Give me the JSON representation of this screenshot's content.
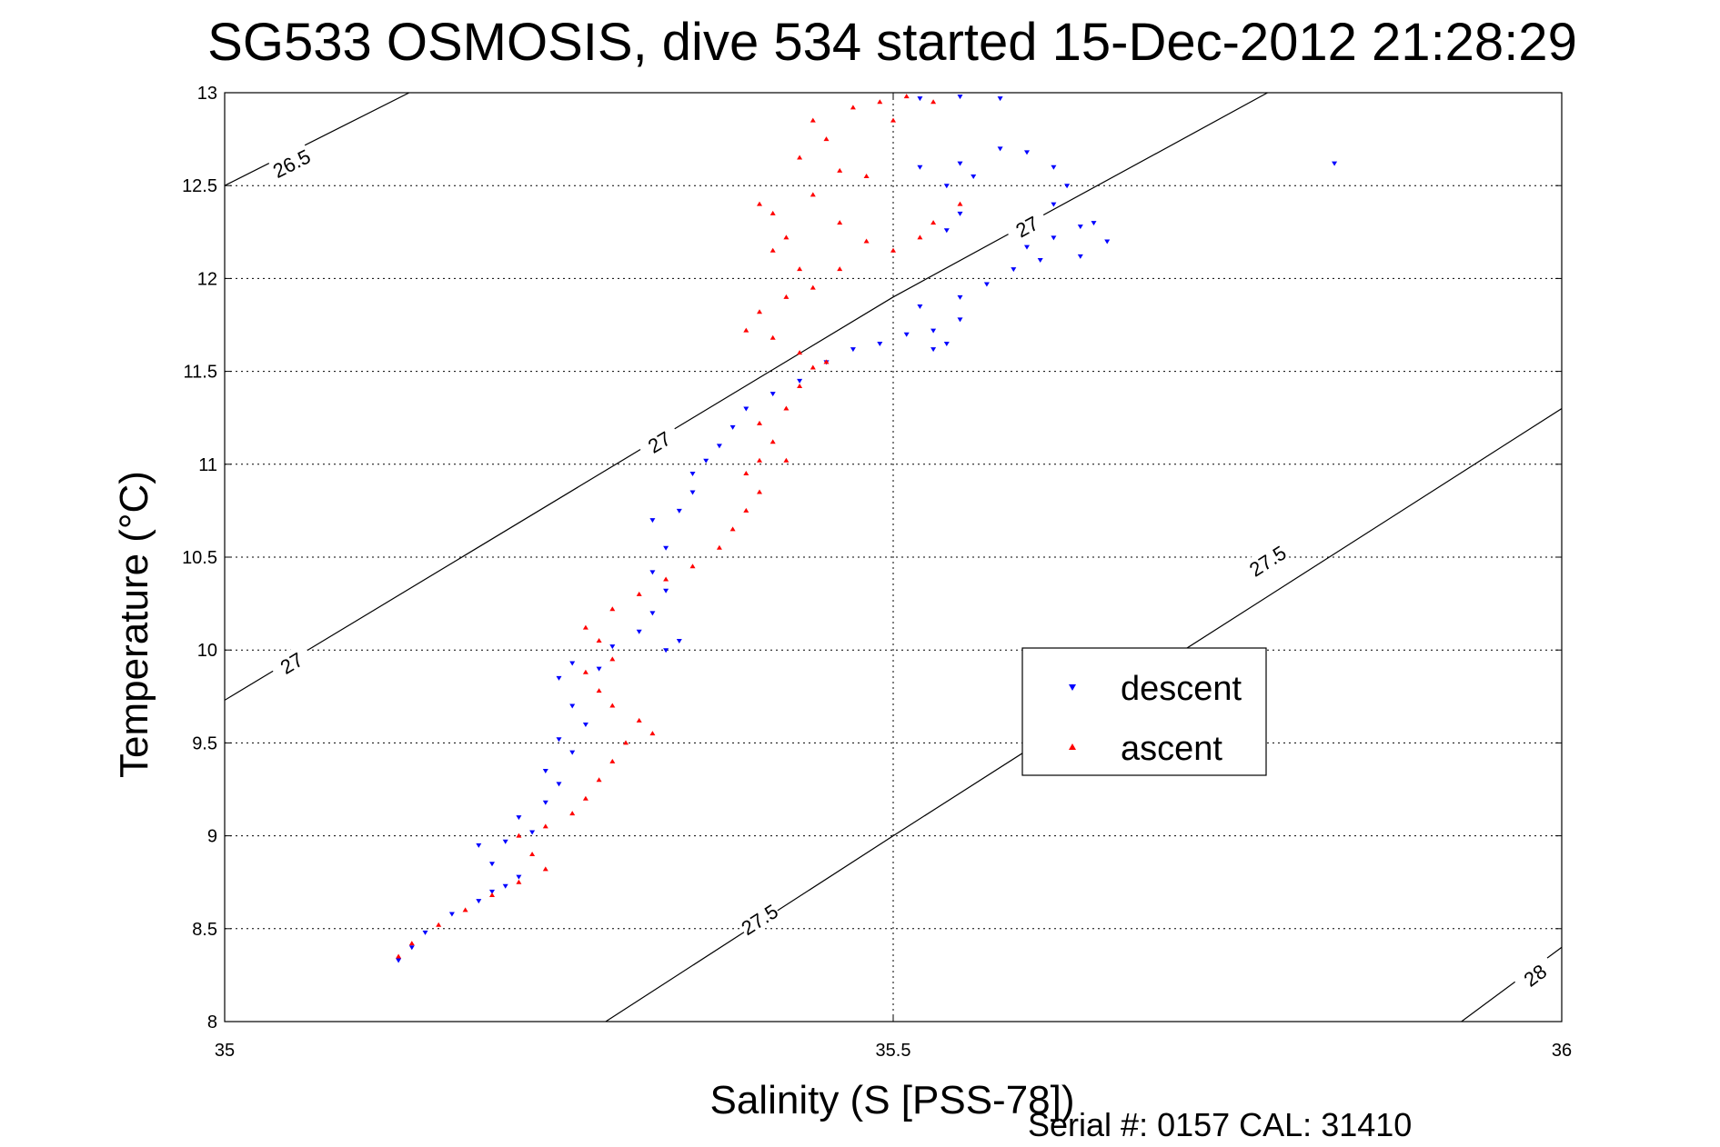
{
  "chart_data": {
    "type": "scatter",
    "title": "SG533 OSMOSIS, dive 534 started 15-Dec-2012 21:28:29",
    "xlabel": "Salinity (S [PSS-78])",
    "ylabel": "Temperature (°C)",
    "xlim": [
      35,
      36
    ],
    "ylim": [
      8,
      13
    ],
    "xticks": [
      35,
      35.5,
      36
    ],
    "xtick_labels": [
      "35",
      "35.5",
      "36"
    ],
    "yticks": [
      8,
      8.5,
      9,
      9.5,
      10,
      10.5,
      11,
      11.5,
      12,
      12.5,
      13
    ],
    "ytick_labels": [
      "8",
      "8.5",
      "9",
      "9.5",
      "10",
      "10.5",
      "11",
      "11.5",
      "12",
      "12.5",
      "13"
    ],
    "grid": true,
    "legend_position": "center-right",
    "footer": "Serial #: 0157  CAL: 31410",
    "colors": {
      "descent": "#0000ff",
      "ascent": "#ff0000"
    },
    "contours": [
      {
        "label": "26.5",
        "points": [
          [
            35.0,
            12.5
          ],
          [
            35.138,
            13.0
          ]
        ],
        "labels_at": [
          [
            35.05,
            12.62
          ]
        ]
      },
      {
        "label": "27",
        "points": [
          [
            35.0,
            9.73
          ],
          [
            35.5,
            11.9
          ],
          [
            35.78,
            13.0
          ]
        ],
        "labels_at": [
          [
            35.05,
            9.93
          ],
          [
            35.325,
            11.12
          ],
          [
            35.6,
            12.28
          ]
        ]
      },
      {
        "label": "27.5",
        "points": [
          [
            35.285,
            8.0
          ],
          [
            35.5,
            9.0
          ],
          [
            36.0,
            11.3
          ]
        ],
        "labels_at": [
          [
            35.4,
            8.55
          ],
          [
            35.78,
            10.48
          ]
        ]
      },
      {
        "label": "28",
        "points": [
          [
            35.925,
            8.0
          ],
          [
            36.0,
            8.4
          ]
        ],
        "labels_at": [
          [
            35.98,
            8.25
          ]
        ]
      }
    ],
    "series": [
      {
        "name": "descent",
        "marker": "triangle-down",
        "points": [
          [
            35.13,
            8.33
          ],
          [
            35.14,
            8.4
          ],
          [
            35.15,
            8.48
          ],
          [
            35.17,
            8.58
          ],
          [
            35.19,
            8.65
          ],
          [
            35.2,
            8.7
          ],
          [
            35.21,
            8.73
          ],
          [
            35.22,
            8.78
          ],
          [
            35.2,
            8.85
          ],
          [
            35.19,
            8.95
          ],
          [
            35.21,
            8.97
          ],
          [
            35.23,
            9.02
          ],
          [
            35.22,
            9.1
          ],
          [
            35.24,
            9.18
          ],
          [
            35.25,
            9.28
          ],
          [
            35.24,
            9.35
          ],
          [
            35.26,
            9.45
          ],
          [
            35.25,
            9.52
          ],
          [
            35.27,
            9.6
          ],
          [
            35.26,
            9.7
          ],
          [
            35.25,
            9.85
          ],
          [
            35.26,
            9.93
          ],
          [
            35.28,
            9.9
          ],
          [
            35.29,
            10.02
          ],
          [
            35.31,
            10.1
          ],
          [
            35.33,
            10.0
          ],
          [
            35.34,
            10.05
          ],
          [
            35.32,
            10.2
          ],
          [
            35.33,
            10.32
          ],
          [
            35.32,
            10.42
          ],
          [
            35.33,
            10.55
          ],
          [
            35.32,
            10.7
          ],
          [
            35.34,
            10.75
          ],
          [
            35.35,
            10.85
          ],
          [
            35.35,
            10.95
          ],
          [
            35.36,
            11.02
          ],
          [
            35.37,
            11.1
          ],
          [
            35.38,
            11.2
          ],
          [
            35.39,
            11.3
          ],
          [
            35.41,
            11.38
          ],
          [
            35.43,
            11.45
          ],
          [
            35.45,
            11.55
          ],
          [
            35.47,
            11.62
          ],
          [
            35.49,
            11.65
          ],
          [
            35.51,
            11.7
          ],
          [
            35.53,
            11.72
          ],
          [
            35.55,
            11.78
          ],
          [
            35.54,
            11.65
          ],
          [
            35.53,
            11.62
          ],
          [
            35.52,
            11.85
          ],
          [
            35.55,
            11.9
          ],
          [
            35.57,
            11.97
          ],
          [
            35.59,
            12.05
          ],
          [
            35.61,
            12.1
          ],
          [
            35.6,
            12.17
          ],
          [
            35.62,
            12.22
          ],
          [
            35.64,
            12.28
          ],
          [
            35.65,
            12.3
          ],
          [
            35.66,
            12.2
          ],
          [
            35.64,
            12.12
          ],
          [
            35.62,
            12.4
          ],
          [
            35.63,
            12.5
          ],
          [
            35.62,
            12.6
          ],
          [
            35.6,
            12.68
          ],
          [
            35.58,
            12.7
          ],
          [
            35.55,
            12.62
          ],
          [
            35.52,
            12.6
          ],
          [
            35.54,
            12.5
          ],
          [
            35.56,
            12.55
          ],
          [
            35.55,
            12.35
          ],
          [
            35.54,
            12.26
          ],
          [
            35.55,
            12.98
          ],
          [
            35.52,
            12.97
          ],
          [
            35.58,
            12.97
          ],
          [
            35.83,
            12.62
          ]
        ]
      },
      {
        "name": "ascent",
        "marker": "triangle-up",
        "points": [
          [
            35.13,
            8.35
          ],
          [
            35.14,
            8.42
          ],
          [
            35.16,
            8.52
          ],
          [
            35.18,
            8.6
          ],
          [
            35.2,
            8.68
          ],
          [
            35.22,
            8.75
          ],
          [
            35.24,
            8.82
          ],
          [
            35.23,
            8.9
          ],
          [
            35.22,
            9.0
          ],
          [
            35.24,
            9.05
          ],
          [
            35.26,
            9.12
          ],
          [
            35.27,
            9.2
          ],
          [
            35.28,
            9.3
          ],
          [
            35.29,
            9.4
          ],
          [
            35.3,
            9.5
          ],
          [
            35.32,
            9.55
          ],
          [
            35.31,
            9.62
          ],
          [
            35.29,
            9.7
          ],
          [
            35.28,
            9.78
          ],
          [
            35.27,
            9.88
          ],
          [
            35.29,
            9.95
          ],
          [
            35.28,
            10.05
          ],
          [
            35.27,
            10.12
          ],
          [
            35.29,
            10.22
          ],
          [
            35.31,
            10.3
          ],
          [
            35.33,
            10.38
          ],
          [
            35.35,
            10.45
          ],
          [
            35.37,
            10.55
          ],
          [
            35.38,
            10.65
          ],
          [
            35.39,
            10.75
          ],
          [
            35.4,
            10.85
          ],
          [
            35.39,
            10.95
          ],
          [
            35.4,
            11.02
          ],
          [
            35.42,
            11.02
          ],
          [
            35.41,
            11.12
          ],
          [
            35.4,
            11.22
          ],
          [
            35.42,
            11.3
          ],
          [
            35.43,
            11.42
          ],
          [
            35.44,
            11.52
          ],
          [
            35.45,
            11.55
          ],
          [
            35.43,
            11.6
          ],
          [
            35.41,
            11.68
          ],
          [
            35.39,
            11.72
          ],
          [
            35.4,
            11.82
          ],
          [
            35.42,
            11.9
          ],
          [
            35.44,
            11.95
          ],
          [
            35.46,
            12.05
          ],
          [
            35.43,
            12.05
          ],
          [
            35.41,
            12.15
          ],
          [
            35.42,
            12.22
          ],
          [
            35.46,
            12.3
          ],
          [
            35.48,
            12.2
          ],
          [
            35.5,
            12.15
          ],
          [
            35.52,
            12.22
          ],
          [
            35.53,
            12.3
          ],
          [
            35.55,
            12.4
          ],
          [
            35.48,
            12.55
          ],
          [
            35.46,
            12.58
          ],
          [
            35.44,
            12.45
          ],
          [
            35.41,
            12.35
          ],
          [
            35.4,
            12.4
          ],
          [
            35.43,
            12.65
          ],
          [
            35.45,
            12.75
          ],
          [
            35.44,
            12.85
          ],
          [
            35.47,
            12.92
          ],
          [
            35.49,
            12.95
          ],
          [
            35.51,
            12.98
          ],
          [
            35.53,
            12.95
          ],
          [
            35.5,
            12.85
          ]
        ]
      }
    ]
  }
}
